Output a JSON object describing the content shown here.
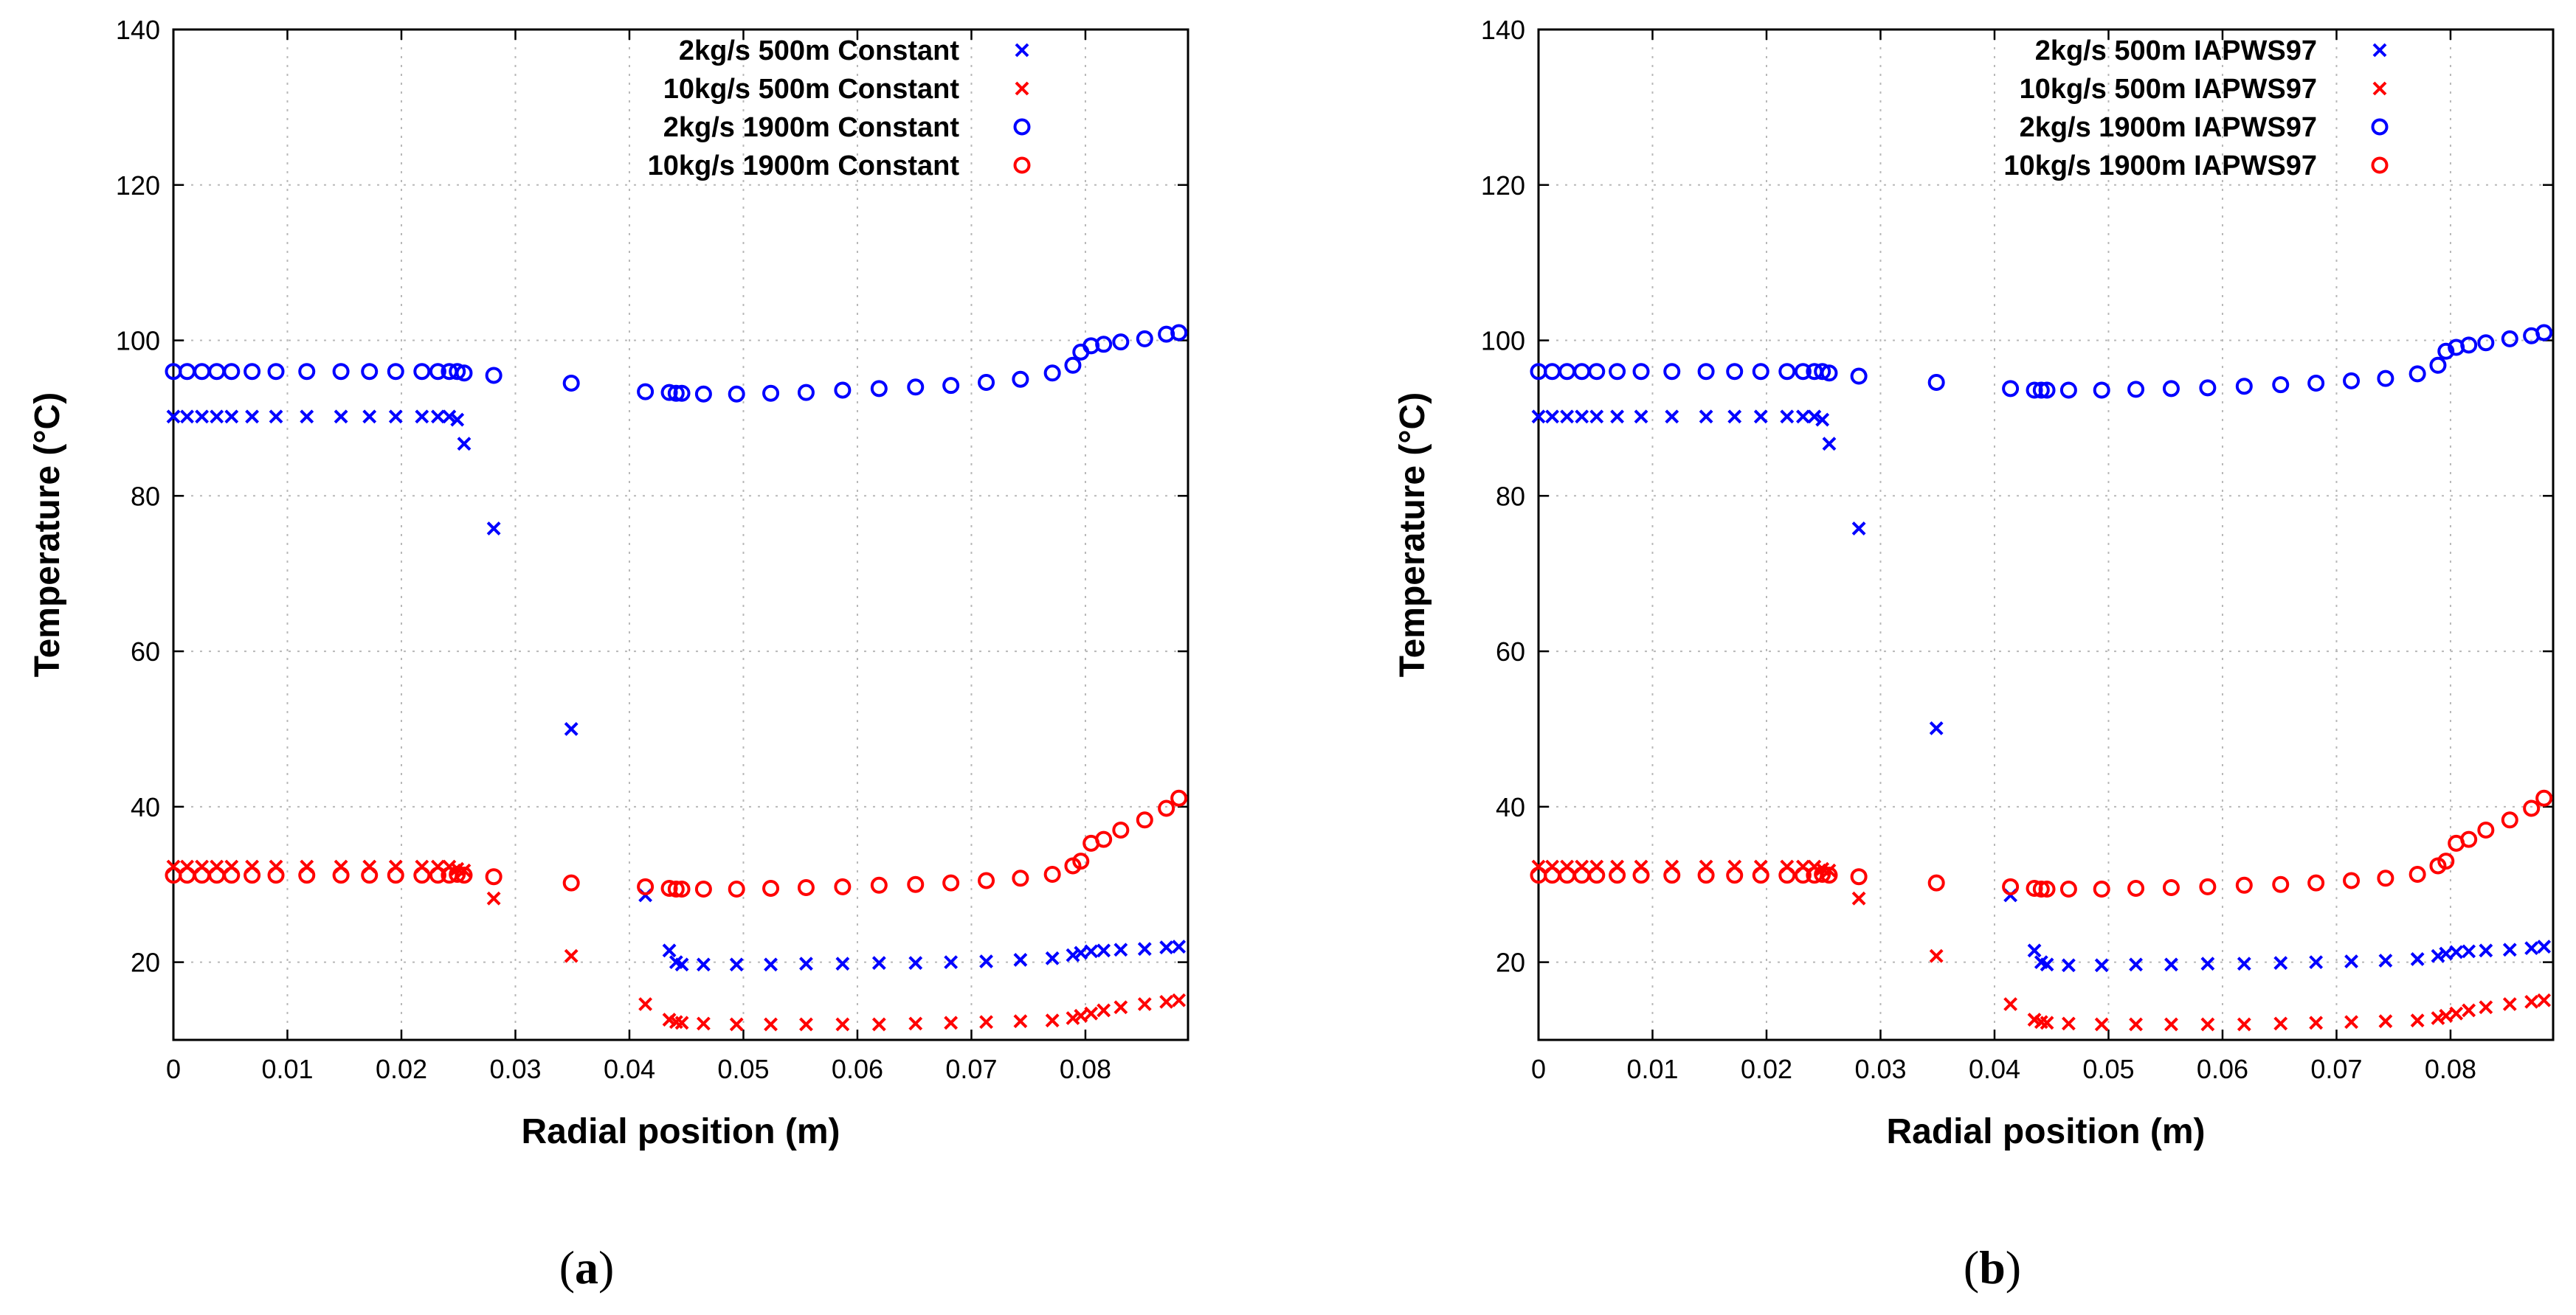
{
  "colors": {
    "blue": "#0000ff",
    "red": "#ff0000",
    "axis": "#000000",
    "grid": "#b8b8b8"
  },
  "markers": {
    "cross": "x",
    "circle": "o"
  },
  "panel_labels": [
    {
      "open": "(",
      "letter": "a",
      "close": ")"
    },
    {
      "open": "(",
      "letter": "b",
      "close": ")"
    }
  ],
  "chart_data": [
    {
      "type": "scatter",
      "xlabel": "Radial position (m)",
      "ylabel": "Temperature (°C)",
      "xlim": [
        0,
        0.089
      ],
      "ylim": [
        10,
        140
      ],
      "x_ticks": [
        0,
        0.01,
        0.02,
        0.03,
        0.04,
        0.05,
        0.06,
        0.07,
        0.08
      ],
      "x_tick_labels": [
        "0",
        "0.01",
        "0.02",
        "0.03",
        "0.04",
        "0.05",
        "0.06",
        "0.07",
        "0.08"
      ],
      "y_ticks": [
        20,
        40,
        60,
        80,
        100,
        120,
        140
      ],
      "y_tick_labels": [
        "20",
        "40",
        "60",
        "80",
        "100",
        "120",
        "140"
      ],
      "grid": true,
      "legend_position": "top-right",
      "series": [
        {
          "name": "2kg/s 500m Constant",
          "color": "blue",
          "marker": "cross",
          "x": [
            0,
            0.0012,
            0.0025,
            0.0038,
            0.0051,
            0.0069,
            0.009,
            0.0117,
            0.0147,
            0.0172,
            0.0195,
            0.0218,
            0.0232,
            0.0242,
            0.0249,
            0.0255,
            0.0281,
            0.0349,
            0.0414,
            0.0435,
            0.0441,
            0.0446,
            0.0465,
            0.0494,
            0.0524,
            0.0555,
            0.0587,
            0.0619,
            0.0651,
            0.0682,
            0.0713,
            0.0743,
            0.0771,
            0.0789,
            0.0796,
            0.0805,
            0.0816,
            0.0831,
            0.0852,
            0.0871,
            0.0882
          ],
          "y": [
            90.2,
            90.2,
            90.2,
            90.2,
            90.2,
            90.2,
            90.2,
            90.2,
            90.2,
            90.2,
            90.2,
            90.2,
            90.2,
            90.2,
            89.8,
            86.7,
            75.8,
            50,
            28.6,
            21.5,
            20,
            19.7,
            19.7,
            19.7,
            19.7,
            19.8,
            19.8,
            19.9,
            19.9,
            20,
            20.1,
            20.3,
            20.5,
            20.9,
            21.2,
            21.4,
            21.5,
            21.6,
            21.7,
            21.9,
            22
          ]
        },
        {
          "name": "10kg/s 500m Constant",
          "color": "red",
          "marker": "cross",
          "x": [
            0,
            0.0012,
            0.0025,
            0.0038,
            0.0051,
            0.0069,
            0.009,
            0.0117,
            0.0147,
            0.0172,
            0.0195,
            0.0218,
            0.0232,
            0.0242,
            0.0249,
            0.0255,
            0.0281,
            0.0349,
            0.0414,
            0.0435,
            0.0441,
            0.0446,
            0.0465,
            0.0494,
            0.0524,
            0.0555,
            0.0587,
            0.0619,
            0.0651,
            0.0682,
            0.0713,
            0.0743,
            0.0771,
            0.0789,
            0.0796,
            0.0805,
            0.0816,
            0.0831,
            0.0852,
            0.0871,
            0.0882
          ],
          "y": [
            32.3,
            32.3,
            32.3,
            32.3,
            32.3,
            32.3,
            32.3,
            32.3,
            32.3,
            32.3,
            32.3,
            32.3,
            32.3,
            32.3,
            32,
            31.8,
            28.2,
            20.8,
            14.6,
            12.6,
            12.3,
            12.2,
            12.1,
            12,
            12,
            12,
            12,
            12,
            12.1,
            12.2,
            12.3,
            12.4,
            12.5,
            12.8,
            13.1,
            13.4,
            13.8,
            14.2,
            14.6,
            14.9,
            15.1
          ]
        },
        {
          "name": "2kg/s 1900m Constant",
          "color": "blue",
          "marker": "circle",
          "x": [
            0,
            0.0012,
            0.0025,
            0.0038,
            0.0051,
            0.0069,
            0.009,
            0.0117,
            0.0147,
            0.0172,
            0.0195,
            0.0218,
            0.0232,
            0.0242,
            0.0249,
            0.0255,
            0.0281,
            0.0349,
            0.0414,
            0.0435,
            0.0441,
            0.0446,
            0.0465,
            0.0494,
            0.0524,
            0.0555,
            0.0587,
            0.0619,
            0.0651,
            0.0682,
            0.0713,
            0.0743,
            0.0771,
            0.0789,
            0.0796,
            0.0805,
            0.0816,
            0.0831,
            0.0852,
            0.0871,
            0.0882
          ],
          "y": [
            96,
            96,
            96,
            96,
            96,
            96,
            96,
            96,
            96,
            96,
            96,
            96,
            96,
            96,
            96,
            95.8,
            95.5,
            94.5,
            93.4,
            93.3,
            93.2,
            93.2,
            93.1,
            93.1,
            93.2,
            93.3,
            93.6,
            93.8,
            94,
            94.2,
            94.6,
            95,
            95.8,
            96.8,
            98.5,
            99.3,
            99.5,
            99.8,
            100.2,
            100.8,
            101
          ]
        },
        {
          "name": "10kg/s 1900m Constant",
          "color": "red",
          "marker": "circle",
          "x": [
            0,
            0.0012,
            0.0025,
            0.0038,
            0.0051,
            0.0069,
            0.009,
            0.0117,
            0.0147,
            0.0172,
            0.0195,
            0.0218,
            0.0232,
            0.0242,
            0.0249,
            0.0255,
            0.0281,
            0.0349,
            0.0414,
            0.0435,
            0.0441,
            0.0446,
            0.0465,
            0.0494,
            0.0524,
            0.0555,
            0.0587,
            0.0619,
            0.0651,
            0.0682,
            0.0713,
            0.0743,
            0.0771,
            0.0789,
            0.0796,
            0.0805,
            0.0816,
            0.0831,
            0.0852,
            0.0871,
            0.0882
          ],
          "y": [
            31.2,
            31.2,
            31.2,
            31.2,
            31.2,
            31.2,
            31.2,
            31.2,
            31.2,
            31.2,
            31.2,
            31.2,
            31.2,
            31.2,
            31.3,
            31.2,
            31,
            30.2,
            29.7,
            29.5,
            29.4,
            29.4,
            29.4,
            29.4,
            29.5,
            29.6,
            29.7,
            29.9,
            30,
            30.2,
            30.5,
            30.8,
            31.3,
            32.4,
            33,
            35.3,
            35.8,
            37,
            38.3,
            39.8,
            41.1
          ]
        }
      ]
    },
    {
      "type": "scatter",
      "xlabel": "Radial position (m)",
      "ylabel": "Temperature (°C)",
      "xlim": [
        0,
        0.089
      ],
      "ylim": [
        10,
        140
      ],
      "x_ticks": [
        0,
        0.01,
        0.02,
        0.03,
        0.04,
        0.05,
        0.06,
        0.07,
        0.08
      ],
      "x_tick_labels": [
        "0",
        "0.01",
        "0.02",
        "0.03",
        "0.04",
        "0.05",
        "0.06",
        "0.07",
        "0.08"
      ],
      "y_ticks": [
        20,
        40,
        60,
        80,
        100,
        120,
        140
      ],
      "y_tick_labels": [
        "20",
        "40",
        "60",
        "80",
        "100",
        "120",
        "140"
      ],
      "grid": true,
      "legend_position": "top-right",
      "series": [
        {
          "name": "2kg/s 500m IAPWS97",
          "color": "blue",
          "marker": "cross",
          "x": [
            0,
            0.0012,
            0.0025,
            0.0038,
            0.0051,
            0.0069,
            0.009,
            0.0117,
            0.0147,
            0.0172,
            0.0195,
            0.0218,
            0.0232,
            0.0242,
            0.0249,
            0.0255,
            0.0281,
            0.0349,
            0.0414,
            0.0435,
            0.0441,
            0.0446,
            0.0465,
            0.0494,
            0.0524,
            0.0555,
            0.0587,
            0.0619,
            0.0651,
            0.0682,
            0.0713,
            0.0743,
            0.0771,
            0.0789,
            0.0796,
            0.0805,
            0.0816,
            0.0831,
            0.0852,
            0.0871,
            0.0882
          ],
          "y": [
            90.2,
            90.2,
            90.2,
            90.2,
            90.2,
            90.2,
            90.2,
            90.2,
            90.2,
            90.2,
            90.2,
            90.2,
            90.2,
            90.2,
            89.8,
            86.7,
            75.8,
            50.1,
            28.6,
            21.5,
            20,
            19.7,
            19.6,
            19.6,
            19.7,
            19.7,
            19.8,
            19.8,
            19.9,
            20,
            20.1,
            20.2,
            20.4,
            20.8,
            21.1,
            21.3,
            21.4,
            21.5,
            21.6,
            21.8,
            22
          ]
        },
        {
          "name": "10kg/s 500m IAPWS97",
          "color": "red",
          "marker": "cross",
          "x": [
            0,
            0.0012,
            0.0025,
            0.0038,
            0.0051,
            0.0069,
            0.009,
            0.0117,
            0.0147,
            0.0172,
            0.0195,
            0.0218,
            0.0232,
            0.0242,
            0.0249,
            0.0255,
            0.0281,
            0.0349,
            0.0414,
            0.0435,
            0.0441,
            0.0446,
            0.0465,
            0.0494,
            0.0524,
            0.0555,
            0.0587,
            0.0619,
            0.0651,
            0.0682,
            0.0713,
            0.0743,
            0.0771,
            0.0789,
            0.0796,
            0.0805,
            0.0816,
            0.0831,
            0.0852,
            0.0871,
            0.0882
          ],
          "y": [
            32.3,
            32.3,
            32.3,
            32.3,
            32.3,
            32.3,
            32.3,
            32.3,
            32.3,
            32.3,
            32.3,
            32.3,
            32.3,
            32.3,
            32,
            31.8,
            28.2,
            20.8,
            14.6,
            12.6,
            12.3,
            12.2,
            12.1,
            12,
            12,
            12,
            12,
            12,
            12.1,
            12.2,
            12.3,
            12.4,
            12.5,
            12.8,
            13.1,
            13.4,
            13.8,
            14.2,
            14.6,
            14.9,
            15.1
          ]
        },
        {
          "name": "2kg/s 1900m IAPWS97",
          "color": "blue",
          "marker": "circle",
          "x": [
            0,
            0.0012,
            0.0025,
            0.0038,
            0.0051,
            0.0069,
            0.009,
            0.0117,
            0.0147,
            0.0172,
            0.0195,
            0.0218,
            0.0232,
            0.0242,
            0.0249,
            0.0255,
            0.0281,
            0.0349,
            0.0414,
            0.0435,
            0.0441,
            0.0446,
            0.0465,
            0.0494,
            0.0524,
            0.0555,
            0.0587,
            0.0619,
            0.0651,
            0.0682,
            0.0713,
            0.0743,
            0.0771,
            0.0789,
            0.0796,
            0.0805,
            0.0816,
            0.0831,
            0.0852,
            0.0871,
            0.0882
          ],
          "y": [
            96,
            96,
            96,
            96,
            96,
            96,
            96,
            96,
            96,
            96,
            96,
            96,
            96,
            96,
            96,
            95.8,
            95.4,
            94.6,
            93.8,
            93.6,
            93.6,
            93.6,
            93.6,
            93.6,
            93.7,
            93.8,
            93.9,
            94.1,
            94.3,
            94.5,
            94.8,
            95.1,
            95.7,
            96.8,
            98.6,
            99.1,
            99.4,
            99.7,
            100.2,
            100.6,
            101
          ]
        },
        {
          "name": "10kg/s 1900m IAPWS97",
          "color": "red",
          "marker": "circle",
          "x": [
            0,
            0.0012,
            0.0025,
            0.0038,
            0.0051,
            0.0069,
            0.009,
            0.0117,
            0.0147,
            0.0172,
            0.0195,
            0.0218,
            0.0232,
            0.0242,
            0.0249,
            0.0255,
            0.0281,
            0.0349,
            0.0414,
            0.0435,
            0.0441,
            0.0446,
            0.0465,
            0.0494,
            0.0524,
            0.0555,
            0.0587,
            0.0619,
            0.0651,
            0.0682,
            0.0713,
            0.0743,
            0.0771,
            0.0789,
            0.0796,
            0.0805,
            0.0816,
            0.0831,
            0.0852,
            0.0871,
            0.0882
          ],
          "y": [
            31.2,
            31.2,
            31.2,
            31.2,
            31.2,
            31.2,
            31.2,
            31.2,
            31.2,
            31.2,
            31.2,
            31.2,
            31.2,
            31.2,
            31.3,
            31.2,
            31,
            30.2,
            29.7,
            29.5,
            29.4,
            29.4,
            29.4,
            29.4,
            29.5,
            29.6,
            29.7,
            29.9,
            30,
            30.2,
            30.5,
            30.8,
            31.3,
            32.4,
            33,
            35.3,
            35.8,
            37,
            38.3,
            39.8,
            41.1
          ]
        }
      ]
    }
  ]
}
